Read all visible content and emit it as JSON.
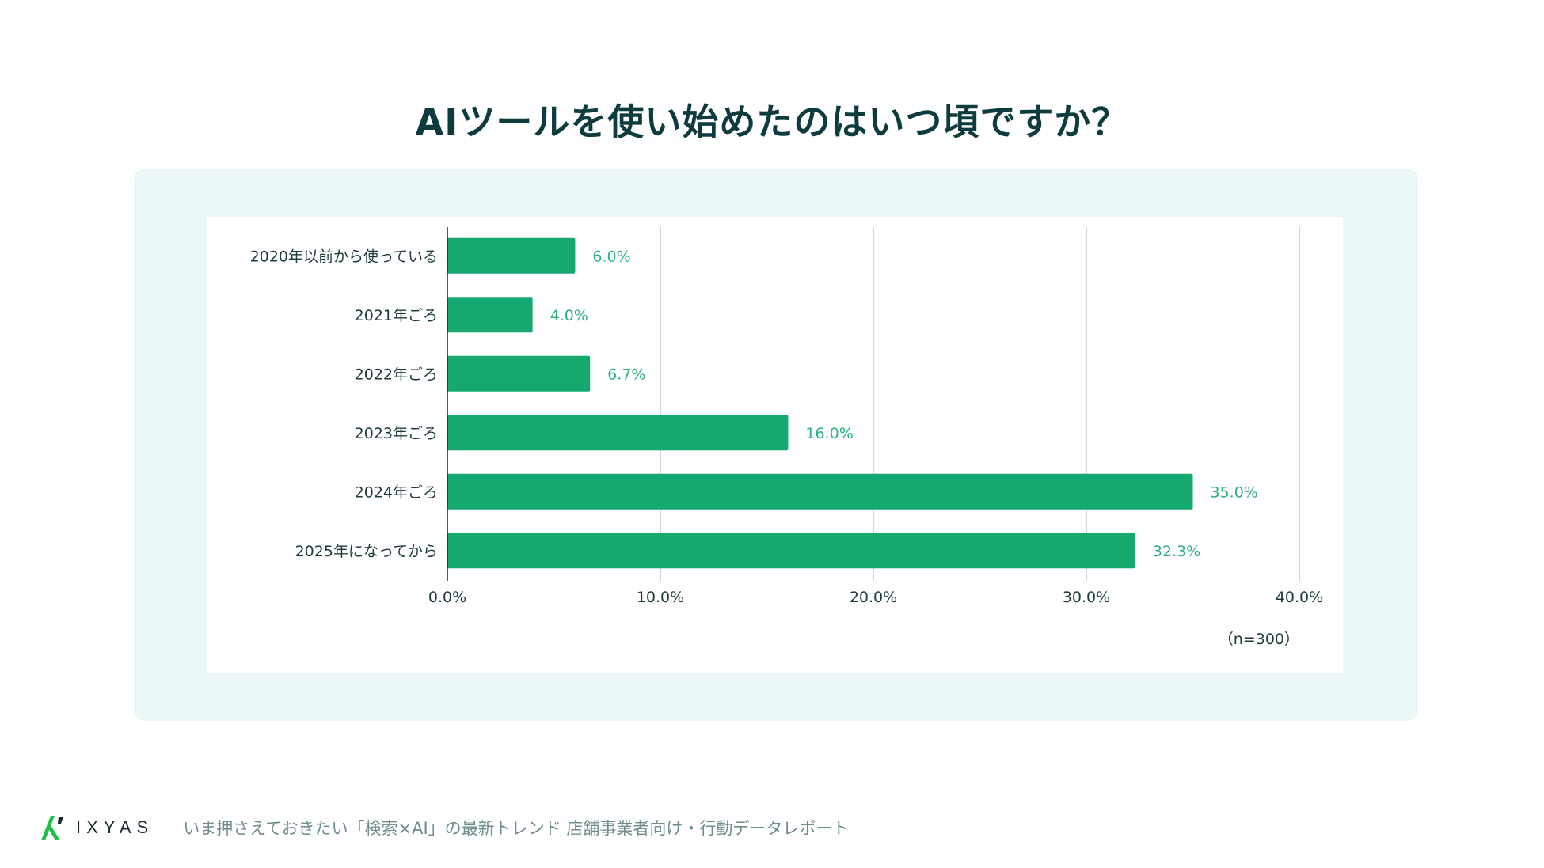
{
  "title": "AIツールを使い始めたのはいつ頃ですか？",
  "chart_data": {
    "type": "bar",
    "orientation": "horizontal",
    "categories": [
      "2020年以前から使っている",
      "2021年ごろ",
      "2022年ごろ",
      "2023年ごろ",
      "2024年ごろ",
      "2025年になってから"
    ],
    "values": [
      6.0,
      4.0,
      6.7,
      16.0,
      35.0,
      32.3
    ],
    "data_labels": [
      "6.0%",
      "4.0%",
      "6.7%",
      "16.0%",
      "35.0%",
      "32.3%"
    ],
    "xlim": [
      0,
      40
    ],
    "xticks": [
      "0.0%",
      "10.0%",
      "20.0%",
      "30.0%",
      "40.0%"
    ],
    "grid": true,
    "note": "（n=300）",
    "bar_color": "#15a86f",
    "label_color": "#2cb27b"
  },
  "footer": {
    "logo": "IXYAS",
    "text": "いま押さえておきたい「検索×AI」の最新トレンド 店舗事業者向け・行動データレポート"
  }
}
